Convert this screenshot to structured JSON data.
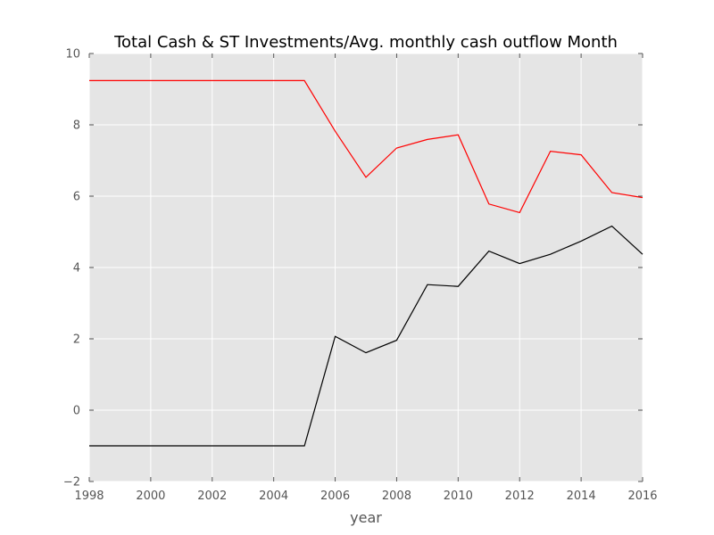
{
  "chart_data": {
    "type": "line",
    "title": "Total Cash & ST Investments/Avg. monthly cash outflow Month",
    "xlabel": "year",
    "ylabel": "",
    "xlim": [
      1998,
      2016
    ],
    "ylim": [
      -2,
      10
    ],
    "xticks": [
      "1998",
      "2000",
      "2002",
      "2004",
      "2006",
      "2008",
      "2010",
      "2012",
      "2014",
      "2016"
    ],
    "yticks": [
      "−2",
      "0",
      "2",
      "4",
      "6",
      "8",
      "10"
    ],
    "grid": true,
    "legend": "none",
    "series": [
      {
        "color": "#ff0000",
        "x": [
          1998,
          1999,
          2000,
          2001,
          2002,
          2003,
          2004,
          2005,
          2006,
          2007,
          2008,
          2009,
          2010,
          2011,
          2012,
          2013,
          2014,
          2015,
          2016
        ],
        "y": [
          9.24,
          9.24,
          9.24,
          9.24,
          9.24,
          9.24,
          9.24,
          9.24,
          7.82,
          6.53,
          7.35,
          7.59,
          7.72,
          5.78,
          5.54,
          7.26,
          7.16,
          6.1,
          5.96
        ]
      },
      {
        "color": "#000000",
        "x": [
          1998,
          1999,
          2000,
          2001,
          2002,
          2003,
          2004,
          2005,
          2006,
          2007,
          2008,
          2009,
          2010,
          2011,
          2012,
          2013,
          2014,
          2015,
          2016
        ],
        "y": [
          -1.0,
          -1.0,
          -1.0,
          -1.0,
          -1.0,
          -1.0,
          -1.0,
          -1.0,
          2.07,
          1.61,
          1.96,
          3.52,
          3.47,
          4.46,
          4.11,
          4.37,
          4.74,
          5.16,
          4.37
        ]
      }
    ]
  }
}
